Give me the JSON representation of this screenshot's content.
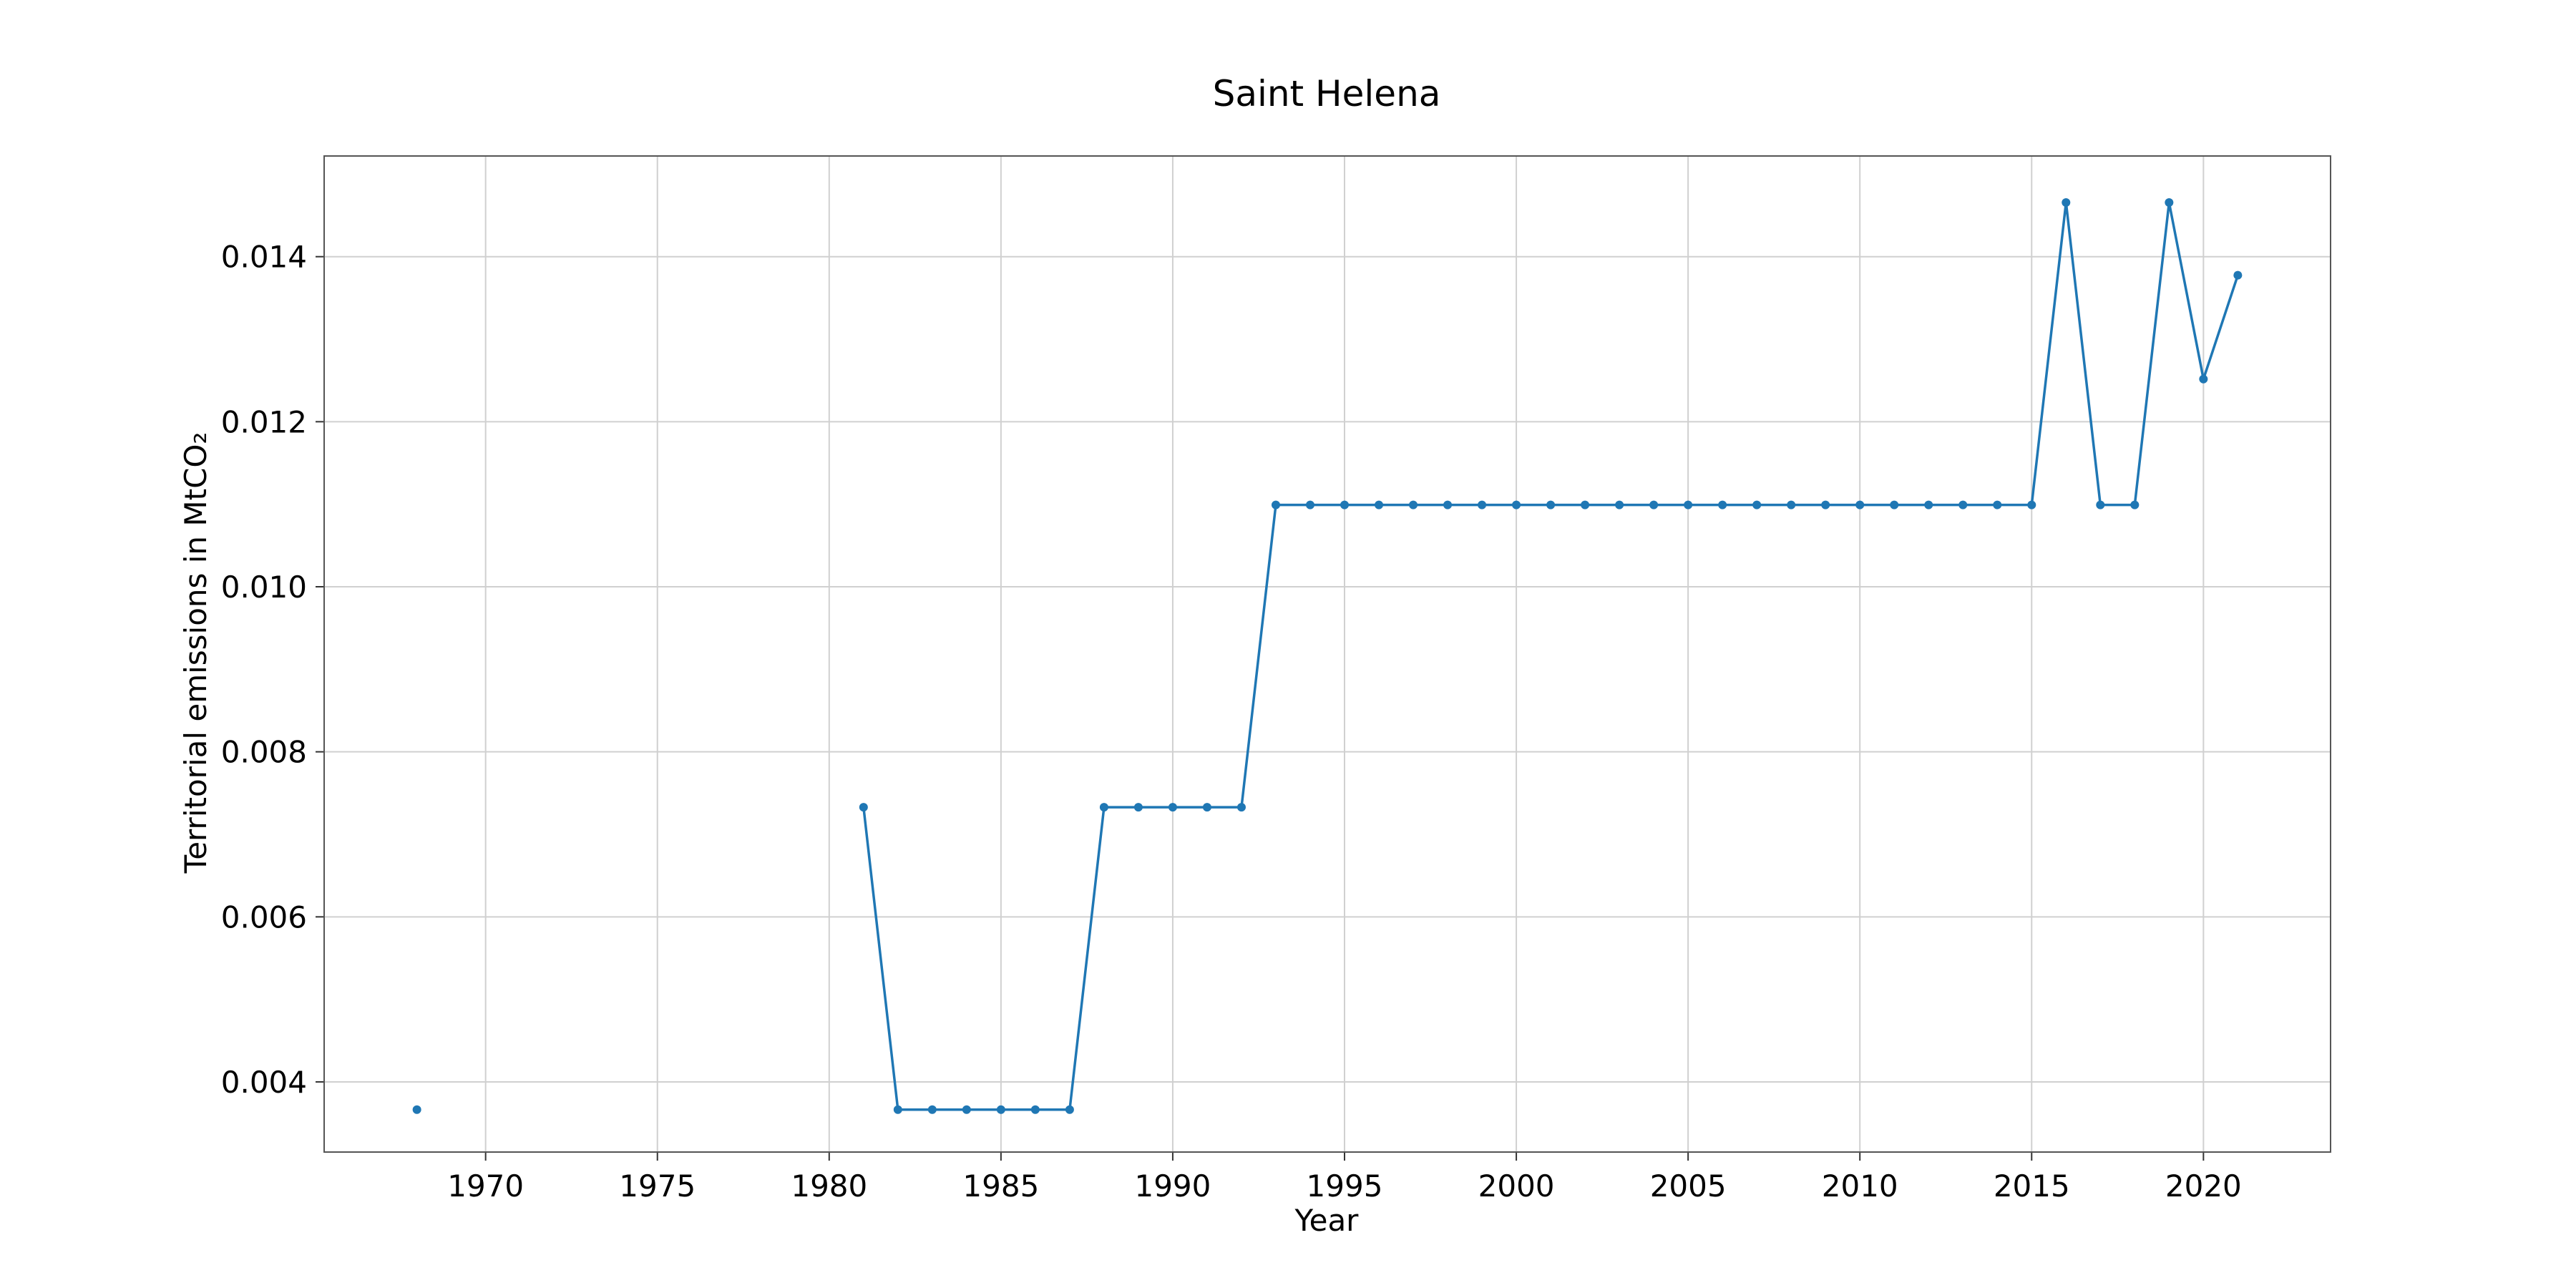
{
  "chart_data": {
    "type": "line",
    "title": "Saint Helena",
    "xlabel": "Year",
    "ylabel": "Territorial emissions in MtCO₂",
    "xlim": [
      1965.3,
      1923.0
    ],
    "x_ticks": [
      1970,
      1975,
      1980,
      1985,
      1990,
      1995,
      2000,
      2005,
      2010,
      2015,
      2020
    ],
    "ylim": [
      0.00315,
      0.01522
    ],
    "y_ticks": [
      0.004,
      0.006,
      0.008,
      0.01,
      0.012,
      0.014
    ],
    "y_tick_labels": [
      "0.004",
      "0.006",
      "0.008",
      "0.010",
      "0.012",
      "0.014"
    ],
    "grid": true,
    "color": "#1f77b4",
    "series": [
      {
        "segments": [
          [
            [
              1968,
              0.003664
            ]
          ],
          [
            [
              1981,
              0.007328
            ],
            [
              1982,
              0.003664
            ],
            [
              1983,
              0.003664
            ],
            [
              1984,
              0.003664
            ],
            [
              1985,
              0.003664
            ],
            [
              1986,
              0.003664
            ],
            [
              1987,
              0.003664
            ],
            [
              1988,
              0.007328
            ],
            [
              1989,
              0.007328
            ],
            [
              1990,
              0.007328
            ],
            [
              1991,
              0.007328
            ],
            [
              1992,
              0.007328
            ],
            [
              1993,
              0.010992
            ],
            [
              1994,
              0.010992
            ],
            [
              1995,
              0.010992
            ],
            [
              1996,
              0.010992
            ],
            [
              1997,
              0.010992
            ],
            [
              1998,
              0.010992
            ],
            [
              1999,
              0.010992
            ],
            [
              2000,
              0.010992
            ],
            [
              2001,
              0.010992
            ],
            [
              2002,
              0.010992
            ],
            [
              2003,
              0.010992
            ],
            [
              2004,
              0.010992
            ],
            [
              2005,
              0.010992
            ],
            [
              2006,
              0.010992
            ],
            [
              2007,
              0.010992
            ],
            [
              2008,
              0.010992
            ],
            [
              2009,
              0.010992
            ],
            [
              2010,
              0.010992
            ],
            [
              2011,
              0.010992
            ],
            [
              2012,
              0.010992
            ],
            [
              2013,
              0.010992
            ],
            [
              2014,
              0.010992
            ],
            [
              2015,
              0.010992
            ],
            [
              2016,
              0.014656
            ],
            [
              2017,
              0.010992
            ],
            [
              2018,
              0.010992
            ],
            [
              2019,
              0.014656
            ],
            [
              2020,
              0.012517
            ],
            [
              2021,
              0.013775
            ]
          ]
        ]
      }
    ]
  }
}
